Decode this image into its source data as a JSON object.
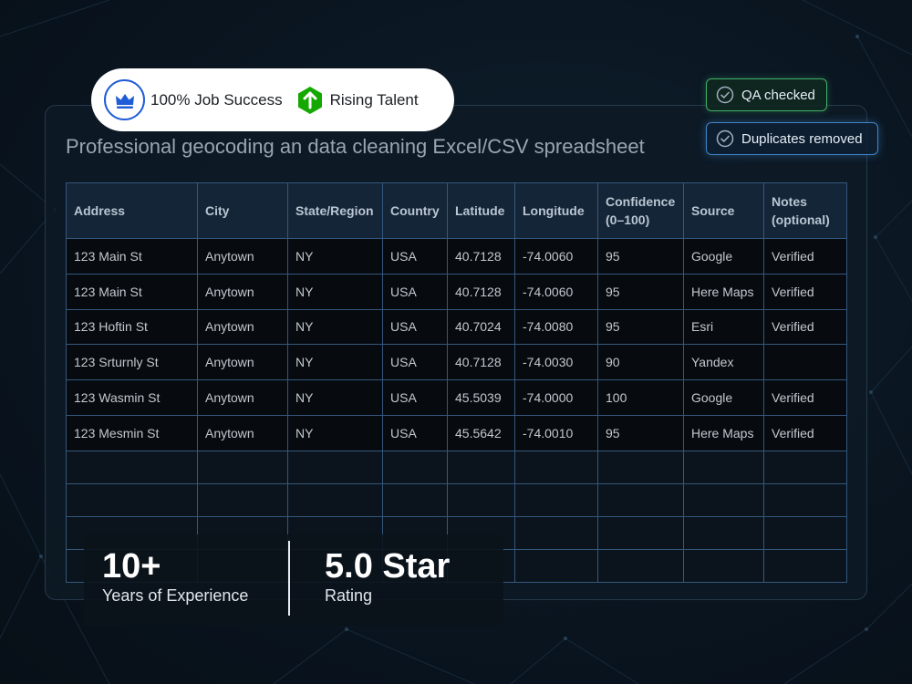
{
  "badges": {
    "job_success": "100% Job Success",
    "rising_talent": "Rising Talent",
    "crown_icon": "crown-icon",
    "rising_icon": "up-arrow-hexagon-icon",
    "job_color": "#1f5cd6",
    "rising_color": "#14a800"
  },
  "chips": {
    "qa": "QA checked",
    "duplicates": "Duplicates removed"
  },
  "title": "Professional geocoding an data cleaning Excel/CSV spreadsheet",
  "table": {
    "headers": [
      "Address",
      "City",
      "State/Region",
      "Country",
      "Latitude",
      "Longitude",
      "Confidence (0–100)",
      "Source",
      "Notes (optional)"
    ],
    "rows": [
      [
        "123 Main St",
        "Anytown",
        "NY",
        "USA",
        "40.7128",
        "-74.0060",
        "95",
        "Google",
        "Verified"
      ],
      [
        "123 Main St",
        "Anytown",
        "NY",
        "USA",
        "40.7128",
        "-74.0060",
        "95",
        "Here Maps",
        "Verified"
      ],
      [
        "123 Hoftin St",
        "Anytown",
        "NY",
        "USA",
        "40.7024",
        "-74.0080",
        "95",
        "Esri",
        "Verified"
      ],
      [
        "123 Srturnly St",
        "Anytown",
        "NY",
        "USA",
        "40.7128",
        "-74.0030",
        "90",
        "Yandex",
        ""
      ],
      [
        "123 Wasmin St",
        "Anytown",
        "NY",
        "USA",
        "45.5039",
        "-74.0000",
        "100",
        "Google",
        "Verified"
      ],
      [
        "123 Mesmin St",
        "Anytown",
        "NY",
        "USA",
        "45.5642",
        "-74.0010",
        "95",
        "Here Maps",
        "Verified"
      ]
    ]
  },
  "stats": {
    "experience_value": "10+",
    "experience_label": "Years of Experience",
    "rating_value": "5.0 Star",
    "rating_label": "Rating"
  }
}
